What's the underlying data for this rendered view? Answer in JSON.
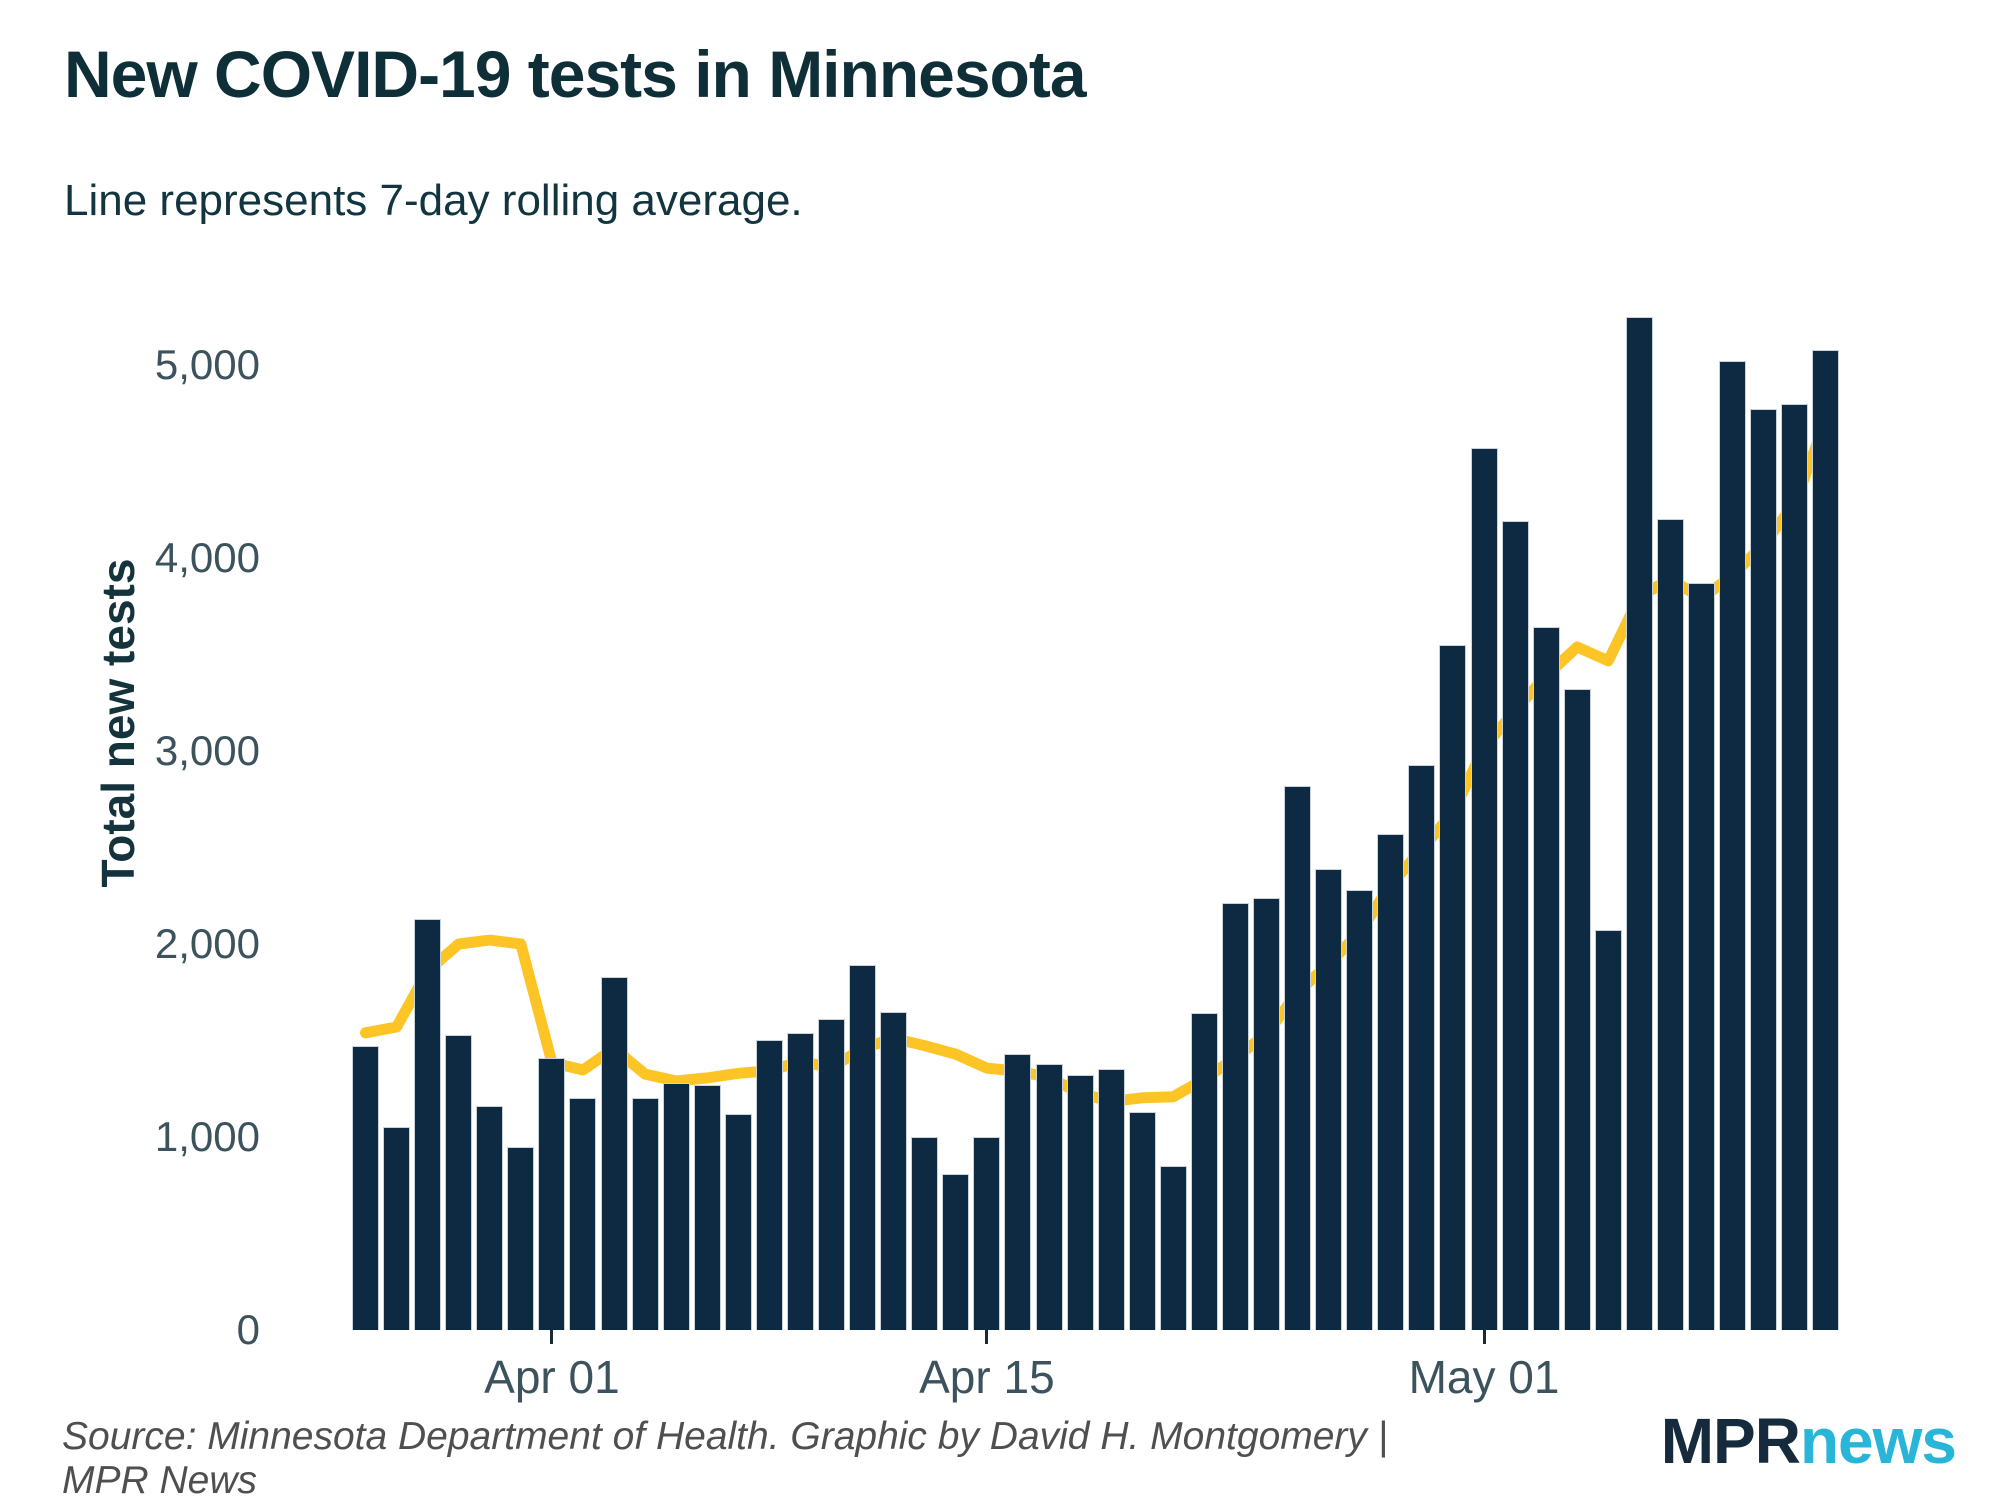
{
  "header": {
    "title": "New COVID-19 tests in Minnesota",
    "subtitle": "Line represents 7-day rolling average."
  },
  "footer": {
    "source": "Source: Minnesota Department of Health. Graphic by David H. Montgomery | MPR News",
    "logo_mpr": "MPR",
    "logo_news": "news"
  },
  "colors": {
    "bar_fill": "#0e2a42",
    "bar_outline": "#c9d3d9",
    "line": "#fdc426",
    "title_text": "#0f2f38",
    "axis_text": "#3c525c",
    "source_text": "#4f4f4f",
    "logo_mpr": "#152b3d",
    "logo_news": "#29b5d8",
    "background": "#ffffff"
  },
  "chart_data": {
    "type": "bar",
    "title": "New COVID-19 tests in Minnesota",
    "subtitle": "Line represents 7-day rolling average.",
    "xlabel": "",
    "ylabel": "Total new tests",
    "ylim": [
      0,
      5285
    ],
    "grid": false,
    "legend": "none",
    "yticks": [
      {
        "value": 0,
        "label": "0"
      },
      {
        "value": 1000,
        "label": "1,000"
      },
      {
        "value": 2000,
        "label": "2,000"
      },
      {
        "value": 3000,
        "label": "3,000"
      },
      {
        "value": 4000,
        "label": "4,000"
      },
      {
        "value": 5000,
        "label": "5,000"
      }
    ],
    "xticks": [
      {
        "index": 6,
        "label": "Apr 01"
      },
      {
        "index": 20,
        "label": "Apr 15"
      },
      {
        "index": 36,
        "label": "May 01"
      }
    ],
    "categories": [
      "Mar 26",
      "Mar 27",
      "Mar 28",
      "Mar 29",
      "Mar 30",
      "Mar 31",
      "Apr 01",
      "Apr 02",
      "Apr 03",
      "Apr 04",
      "Apr 05",
      "Apr 06",
      "Apr 07",
      "Apr 08",
      "Apr 09",
      "Apr 10",
      "Apr 11",
      "Apr 12",
      "Apr 13",
      "Apr 14",
      "Apr 15",
      "Apr 16",
      "Apr 17",
      "Apr 18",
      "Apr 19",
      "Apr 20",
      "Apr 21",
      "Apr 22",
      "Apr 23",
      "Apr 24",
      "Apr 25",
      "Apr 26",
      "Apr 27",
      "Apr 28",
      "Apr 29",
      "Apr 30",
      "May 01",
      "May 02",
      "May 03",
      "May 04",
      "May 05",
      "May 06",
      "May 07",
      "May 08",
      "May 09",
      "May 10",
      "May 11",
      "May 12"
    ],
    "series": [
      {
        "name": "Daily new tests",
        "type": "bar",
        "color": "#0e2a42",
        "values": [
          1470,
          1050,
          2130,
          1530,
          1160,
          950,
          1410,
          1200,
          1830,
          1200,
          1280,
          1270,
          1120,
          1500,
          1540,
          1610,
          1890,
          1650,
          1000,
          810,
          1000,
          1430,
          1380,
          1320,
          1350,
          1130,
          850,
          1640,
          2210,
          2240,
          2820,
          2390,
          2280,
          2570,
          2930,
          3550,
          4570,
          4190,
          3640,
          3320,
          2070,
          5250,
          4200,
          3870,
          5020,
          4770,
          4800,
          5080
        ]
      },
      {
        "name": "7-day rolling average",
        "type": "line",
        "color": "#fdc426",
        "values": [
          1540,
          1570,
          1860,
          2000,
          2020,
          2000,
          1386,
          1347,
          1459,
          1326,
          1290,
          1306,
          1330,
          1343,
          1391,
          1360,
          1459,
          1511,
          1473,
          1429,
          1357,
          1341,
          1309,
          1227,
          1184,
          1203,
          1209,
          1300,
          1411,
          1534,
          1749,
          1897,
          2061,
          2307,
          2491,
          2683,
          3016,
          3211,
          3390,
          3539,
          3467,
          3799,
          3891,
          3791,
          3910,
          4071,
          4283,
          4713
        ]
      }
    ]
  }
}
